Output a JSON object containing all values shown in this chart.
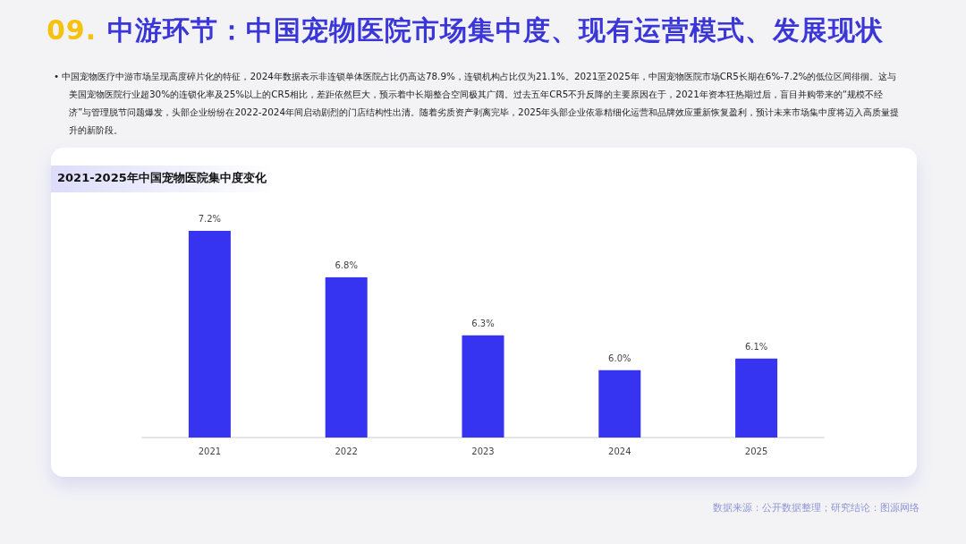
{
  "chart_data": {
    "type": "bar",
    "title": "09. 中游环节：中国宠物医院市场集中度、现有运营模式、发展现状",
    "subtitle": "•  中国宠物医疗中游市场呈现高度碎片化的特征，2024年数据表示非连锁单体医院占比仍高达78.9%，连锁机构占比仅为21.1%。2021至2025年，中国宠物医院市场CR5长期在6%-7.2%的低位区间徘徊。这与美国宠物医院行业超30%的连锁化率及25%以上的CR5相比，差距依然巨大，预示着中长期整合空间极其广阔。过去五年CR5不升反降的主要原因在于，2021年资本狂热期过后，盲目并购带来的“规模不经济”与管理脱节问题爆发，头部企业纷纷在2022-2024年间启动剧烈的门店结构性出清。随着劣质资产剥离完毕，2025年头部企业依靠精细化运营和品牌效应重新恢复盈利，预计未来市场集中度将迈入高质量提升的新阶段。",
    "annotations": [
      "2021-2025年中国宠物医院集中度变化",
      "数据来源：公开数据整理；研究结论：图源网络"
    ],
    "categories": [
      "2021",
      "2022",
      "2023",
      "2024",
      "2025"
    ],
    "values": [
      7.2,
      6.8,
      6.3,
      6.0,
      6.1
    ],
    "value_labels": [
      "7.2%",
      "6.8%",
      "6.3%",
      "6.0%",
      "6.1%"
    ],
    "color": "#3634f0",
    "ylim": [
      5.42,
      7.2
    ],
    "tick_labels": "x"
  }
}
